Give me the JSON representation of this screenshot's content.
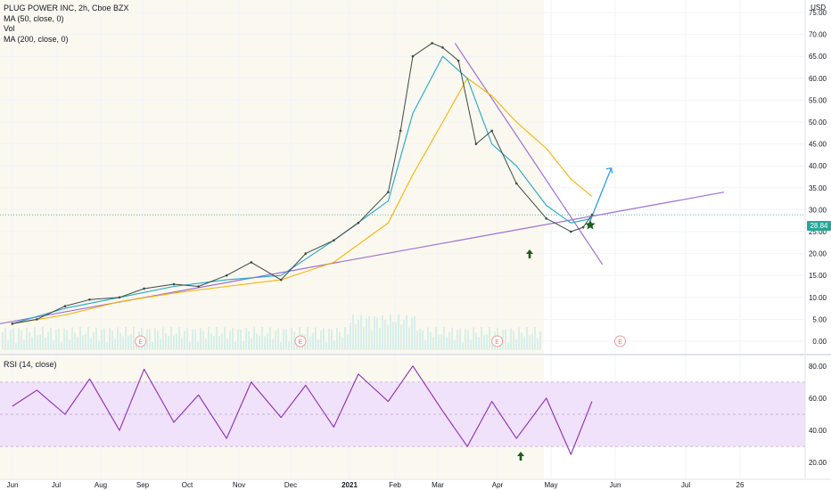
{
  "legend": {
    "title": "PLUG POWER INC, 2h, Cboe BZX",
    "ma50": "MA (50, close, 0)",
    "vol": "Vol",
    "ma200": "MA (200, close, 0)",
    "rsi": "RSI (14, close)"
  },
  "currency": "USD",
  "last_price": "28.84",
  "earnings_label": "E",
  "colors": {
    "ma_fast": "#22a7c9",
    "ma_slow": "#f5b300",
    "trendline": "#9c6fd6",
    "arrow": "#2196f3",
    "rsi_line": "#8e2bb8",
    "rsi_band": "#f0e2fb",
    "marker": "#1b5e20",
    "badge": "#26a69a"
  },
  "chart_data": [
    {
      "type": "line",
      "title": "PLUG POWER INC, 2h, Cboe BZX",
      "x_tick_labels": [
        "Jun",
        "Jul",
        "Aug",
        "Sep",
        "Oct",
        "Nov",
        "Dec",
        "2021",
        "Feb",
        "Mar",
        "Apr",
        "May",
        "Jun",
        "Jul",
        "26"
      ],
      "y_tick_labels": [
        "0.00",
        "5.00",
        "10.00",
        "15.00",
        "20.00",
        "25.00",
        "30.00",
        "35.00",
        "40.00",
        "45.00",
        "50.00",
        "55.00",
        "60.00",
        "65.00",
        "70.00",
        "75.00"
      ],
      "ylim": [
        0,
        75
      ],
      "last_value": 28.84,
      "series": [
        {
          "name": "PLUG POWER INC",
          "x": [
            "2020-06-01",
            "2020-06-15",
            "2020-07-01",
            "2020-07-15",
            "2020-08-01",
            "2020-08-15",
            "2020-09-01",
            "2020-09-15",
            "2020-10-01",
            "2020-10-15",
            "2020-11-01",
            "2020-11-15",
            "2020-12-01",
            "2020-12-15",
            "2021-01-01",
            "2021-01-08",
            "2021-01-15",
            "2021-01-26",
            "2021-02-01",
            "2021-02-10",
            "2021-02-20",
            "2021-03-01",
            "2021-03-15",
            "2021-04-01",
            "2021-04-15",
            "2021-04-22",
            "2021-04-27"
          ],
          "values": [
            4,
            5,
            8,
            9.5,
            10,
            12,
            13,
            12.5,
            15,
            18,
            14,
            20,
            23,
            27,
            34,
            48,
            65,
            68,
            67,
            64,
            45,
            48,
            36,
            28,
            25,
            26,
            28.84
          ]
        },
        {
          "name": "MA (50, close, 0)",
          "x": [
            "2020-06-01",
            "2020-07-01",
            "2020-08-01",
            "2020-09-01",
            "2020-10-01",
            "2020-11-01",
            "2020-12-01",
            "2021-01-01",
            "2021-01-15",
            "2021-02-01",
            "2021-02-15",
            "2021-03-01",
            "2021-03-15",
            "2021-04-01",
            "2021-04-15",
            "2021-04-27"
          ],
          "values": [
            4,
            7.5,
            10,
            12.5,
            14,
            15,
            23,
            32,
            52,
            65,
            60,
            45,
            40,
            31,
            27,
            28
          ]
        },
        {
          "name": "MA (200, close, 0)",
          "x": [
            "2020-06-01",
            "2020-07-01",
            "2020-08-01",
            "2020-09-01",
            "2020-10-01",
            "2020-11-01",
            "2020-12-01",
            "2021-01-01",
            "2021-01-15",
            "2021-02-01",
            "2021-02-15",
            "2021-03-01",
            "2021-03-15",
            "2021-04-01",
            "2021-04-15",
            "2021-04-27"
          ],
          "values": [
            4,
            6,
            9,
            11,
            12.5,
            14,
            18,
            27,
            38,
            50,
            60,
            56,
            50,
            44,
            37,
            33
          ]
        }
      ]
    },
    {
      "type": "line",
      "title": "RSI (14, close)",
      "y_tick_labels": [
        "20.00",
        "40.00",
        "60.00",
        "80.00"
      ],
      "ylim": [
        14,
        86
      ],
      "band": [
        30,
        70
      ],
      "series": [
        {
          "name": "RSI (14, close)",
          "x": [
            "2020-06-01",
            "2020-06-15",
            "2020-07-01",
            "2020-07-15",
            "2020-08-01",
            "2020-08-15",
            "2020-09-01",
            "2020-09-15",
            "2020-10-01",
            "2020-10-15",
            "2020-11-01",
            "2020-11-15",
            "2020-12-01",
            "2020-12-15",
            "2021-01-01",
            "2021-01-15",
            "2021-02-01",
            "2021-02-15",
            "2021-03-01",
            "2021-03-15",
            "2021-04-01",
            "2021-04-15",
            "2021-04-27"
          ],
          "values": [
            55,
            65,
            50,
            72,
            40,
            78,
            45,
            62,
            35,
            70,
            48,
            68,
            42,
            75,
            58,
            80,
            52,
            30,
            58,
            35,
            60,
            25,
            58
          ]
        }
      ]
    }
  ]
}
